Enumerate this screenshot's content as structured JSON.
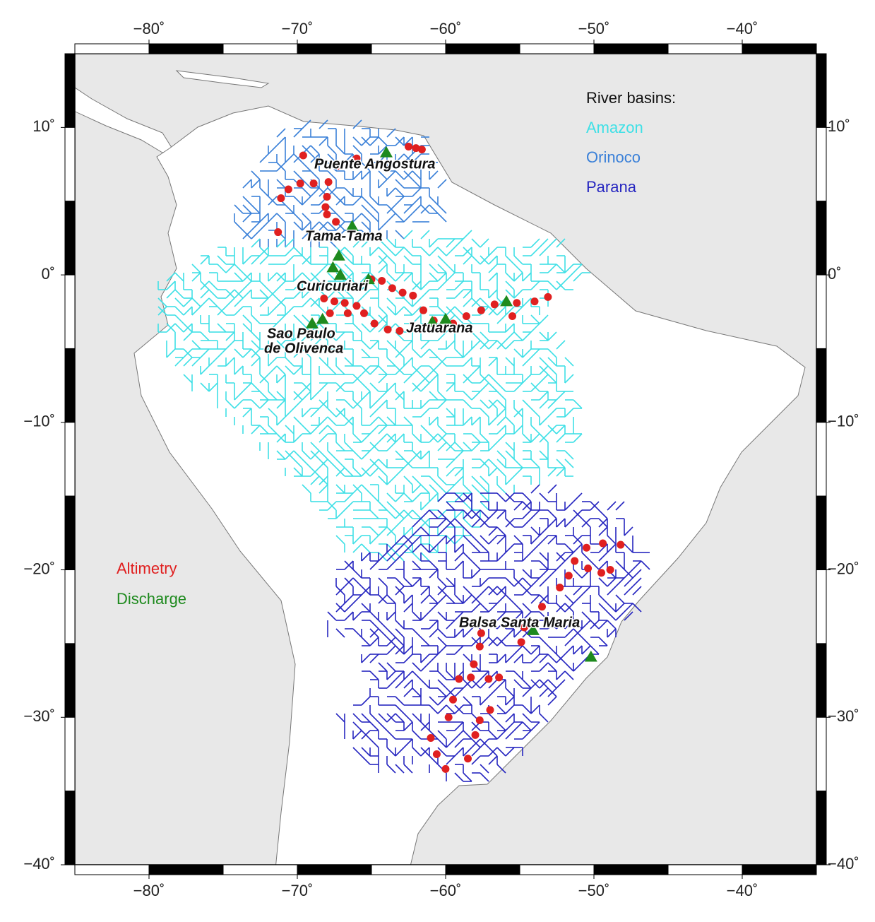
{
  "map": {
    "xlim": [
      -85,
      -35
    ],
    "ylim": [
      -40,
      15
    ],
    "lon_ticks": [
      {
        "value": -80,
        "label": "−80˚"
      },
      {
        "value": -70,
        "label": "−70˚"
      },
      {
        "value": -60,
        "label": "−60˚"
      },
      {
        "value": -50,
        "label": "−50˚"
      },
      {
        "value": -40,
        "label": "−40˚"
      }
    ],
    "lat_ticks": [
      {
        "value": 10,
        "label": "10˚"
      },
      {
        "value": 0,
        "label": "0˚"
      },
      {
        "value": -10,
        "label": "−10˚"
      },
      {
        "value": -20,
        "label": "−20˚"
      },
      {
        "value": -30,
        "label": "−30˚"
      },
      {
        "value": -40,
        "label": "−40˚"
      }
    ],
    "basin_legend": {
      "title": "River basins:",
      "items": [
        {
          "name": "Amazon",
          "color": "#3fe0e6"
        },
        {
          "name": "Orinoco",
          "color": "#3a80d8"
        },
        {
          "name": "Parana",
          "color": "#2626c0"
        }
      ]
    },
    "point_legend": [
      {
        "name": "Altimetry",
        "color": "#e02020"
      },
      {
        "name": "Discharge",
        "color": "#1e8a1e"
      }
    ],
    "station_labels": [
      "Puente Angostura",
      "Tama-Tama",
      "Curicuriari",
      "Sao Paulo",
      "de Olivenca",
      "Jatuarana",
      "Balsa Santa Maria"
    ],
    "discharge": {
      "lon": [
        -64.0,
        -66.3,
        -67.2,
        -67.6,
        -67.1,
        -65.2,
        -69.0,
        -68.3,
        -60.9,
        -60.0,
        -55.9,
        -54.1,
        -50.2
      ],
      "lat": [
        8.3,
        3.3,
        1.3,
        0.5,
        0.0,
        -0.3,
        -3.3,
        -3.0,
        -3.2,
        -3.0,
        -1.8,
        -24.1,
        -25.9
      ]
    },
    "altimetry": {
      "lon": [
        -69.6,
        -66.0,
        -67.2,
        -62.5,
        -62.0,
        -61.6,
        -67.9,
        -68.9,
        -69.8,
        -70.6,
        -71.1,
        -68.0,
        -68.1,
        -68.0,
        -67.4,
        -71.3,
        -65.0,
        -64.3,
        -63.6,
        -62.9,
        -62.2,
        -61.5,
        -60.8,
        -59.5,
        -58.6,
        -57.6,
        -56.7,
        -55.2,
        -54.0,
        -53.1,
        -55.5,
        -68.2,
        -67.5,
        -66.8,
        -66.0,
        -65.5,
        -64.8,
        -63.9,
        -63.1,
        -61.9,
        -67.8,
        -66.6,
        -50.5,
        -49.4,
        -48.2,
        -51.3,
        -51.7,
        -50.4,
        -49.5,
        -48.9,
        -52.3,
        -53.5,
        -54.7,
        -54.9,
        -57.6,
        -57.7,
        -58.1,
        -59.1,
        -58.3,
        -57.1,
        -56.4,
        -59.5,
        -59.8,
        -57.0,
        -57.7,
        -58.0,
        -61.0,
        -60.6,
        -60.0,
        -58.5
      ],
      "lat": [
        8.1,
        7.9,
        7.4,
        8.7,
        8.6,
        8.5,
        6.3,
        6.2,
        6.2,
        5.8,
        5.2,
        5.3,
        4.6,
        4.1,
        3.6,
        2.9,
        -0.3,
        -0.4,
        -0.9,
        -1.2,
        -1.4,
        -2.4,
        -3.1,
        -3.3,
        -2.8,
        -2.4,
        -2.0,
        -1.9,
        -1.8,
        -1.5,
        -2.8,
        -1.6,
        -1.8,
        -1.9,
        -2.1,
        -2.6,
        -3.3,
        -3.7,
        -3.8,
        -3.6,
        -2.6,
        -2.6,
        -18.5,
        -18.2,
        -18.3,
        -19.4,
        -20.4,
        -19.9,
        -20.2,
        -20.0,
        -21.2,
        -22.5,
        -23.9,
        -24.9,
        -24.3,
        -25.2,
        -26.4,
        -27.4,
        -27.3,
        -27.4,
        -27.3,
        -28.8,
        -30.0,
        -29.5,
        -30.2,
        -31.2,
        -31.4,
        -32.5,
        -33.5,
        -32.8
      ]
    }
  }
}
